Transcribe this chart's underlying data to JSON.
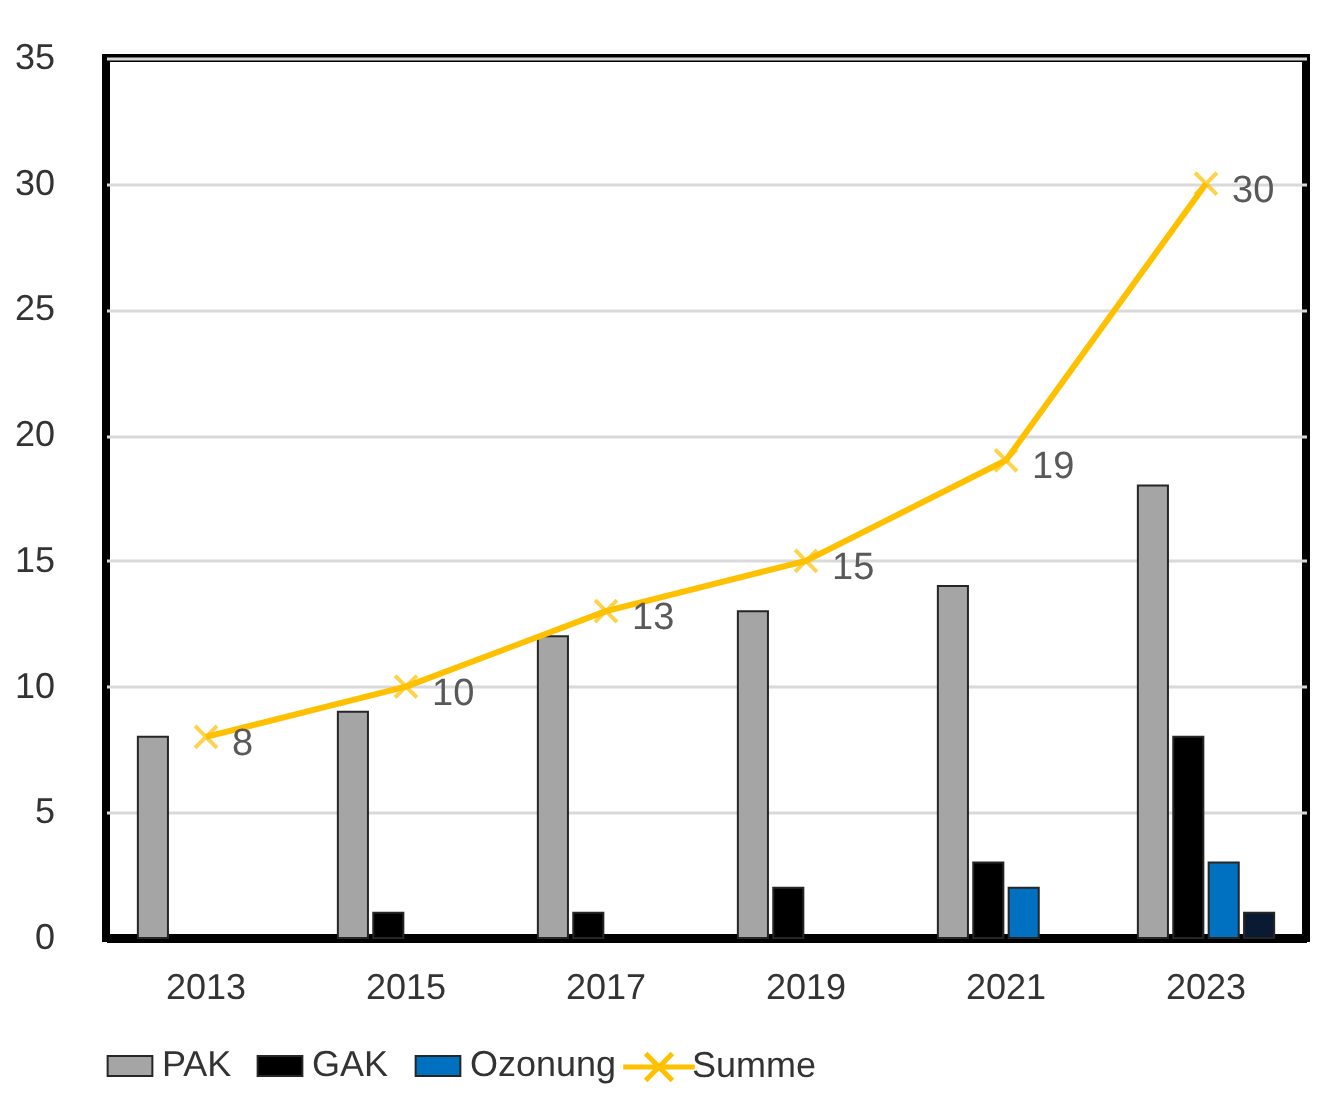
{
  "chart_data": {
    "type": "bar",
    "categories": [
      "2013",
      "2015",
      "2017",
      "2019",
      "2021",
      "2023"
    ],
    "series": [
      {
        "name": "PAK",
        "color": "#a5a5a5",
        "values": [
          8,
          9,
          12,
          13,
          14,
          18
        ]
      },
      {
        "name": "GAK",
        "color": "#000000",
        "values": [
          null,
          1,
          1,
          2,
          3,
          8
        ]
      },
      {
        "name": "Ozonung",
        "color": "#0070c0",
        "values": [
          null,
          null,
          null,
          null,
          2,
          3
        ]
      },
      {
        "color": "#0b1a33",
        "values": [
          null,
          null,
          null,
          null,
          null,
          1
        ]
      },
      {
        "name": "Summe",
        "type": "line",
        "color": "#ffc000",
        "marker": "cross",
        "values": [
          8,
          10,
          13,
          15,
          19,
          30
        ],
        "value_labels": [
          "8",
          "10",
          "13",
          "15",
          "19",
          "30"
        ]
      }
    ],
    "ylim": [
      0,
      35
    ],
    "yticks": [
      0,
      5,
      10,
      15,
      20,
      25,
      30,
      35
    ],
    "grid": "y",
    "legend": "bottom"
  }
}
